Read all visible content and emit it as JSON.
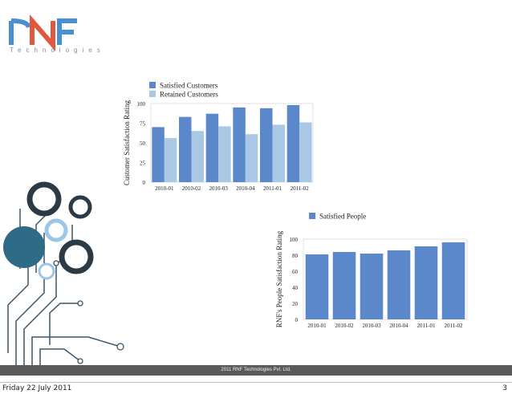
{
  "logo": {
    "mark": "RNF",
    "subtitle": "Technologies"
  },
  "chart_data": [
    {
      "type": "bar",
      "categories": [
        "2010-01",
        "2010-02",
        "2010-03",
        "2010-04",
        "2011-01",
        "2011-02"
      ],
      "series": [
        {
          "name": "Satisfied Customers",
          "values": [
            70,
            83,
            87,
            95,
            94,
            98
          ]
        },
        {
          "name": "Retained Customers",
          "values": [
            56,
            65,
            71,
            61,
            73,
            76
          ]
        }
      ],
      "ylabel": "Customer Satisfaction Rating",
      "ylim": [
        0,
        100
      ],
      "yticks": [
        0,
        25,
        50,
        75,
        100
      ],
      "legend": "top",
      "colors": [
        "#5b87cb",
        "#a9c8e6"
      ]
    },
    {
      "type": "bar",
      "categories": [
        "2010-01",
        "2010-02",
        "2010-03",
        "2010-04",
        "2011-01",
        "2011-02"
      ],
      "series": [
        {
          "name": "Satisfied People",
          "values": [
            81,
            84,
            82,
            86,
            91,
            96
          ]
        }
      ],
      "ylabel": "RNF's People Satisfaction Rating",
      "ylim": [
        0,
        100
      ],
      "yticks": [
        0,
        20,
        40,
        60,
        80,
        100
      ],
      "legend": "top-right",
      "colors": [
        "#5b87cb"
      ]
    }
  ],
  "footer": {
    "text": "2011 RNF Technologies Pvt. Ltd."
  },
  "print": {
    "date": "Friday 22 July 2011",
    "page": "3"
  }
}
